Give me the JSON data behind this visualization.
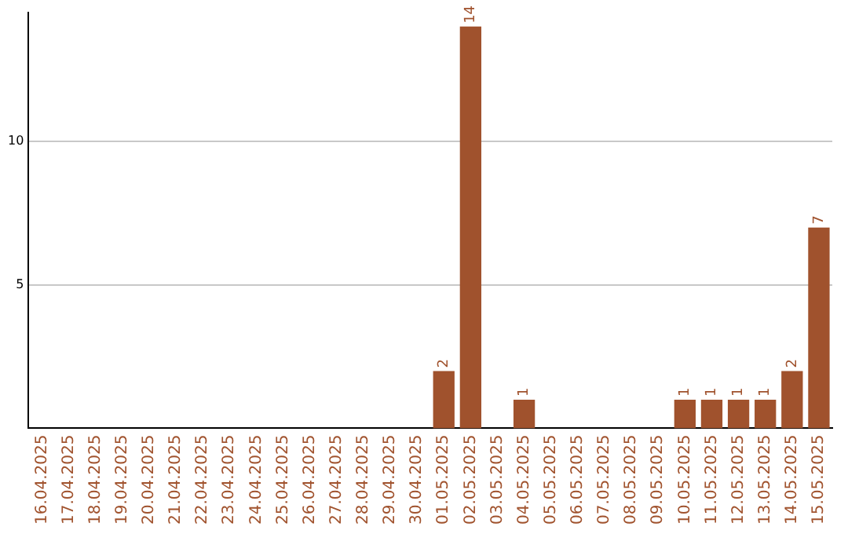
{
  "chart_data": {
    "type": "bar",
    "categories": [
      "16.04.2025",
      "17.04.2025",
      "18.04.2025",
      "19.04.2025",
      "20.04.2025",
      "21.04.2025",
      "22.04.2025",
      "23.04.2025",
      "24.04.2025",
      "25.04.2025",
      "26.04.2025",
      "27.04.2025",
      "28.04.2025",
      "29.04.2025",
      "30.04.2025",
      "01.05.2025",
      "02.05.2025",
      "03.05.2025",
      "04.05.2025",
      "05.05.2025",
      "06.05.2025",
      "07.05.2025",
      "08.05.2025",
      "09.05.2025",
      "10.05.2025",
      "11.05.2025",
      "12.05.2025",
      "13.05.2025",
      "14.05.2025",
      "15.05.2025"
    ],
    "values": [
      0,
      0,
      0,
      0,
      0,
      0,
      0,
      0,
      0,
      0,
      0,
      0,
      0,
      0,
      0,
      2,
      14,
      0,
      1,
      0,
      0,
      0,
      0,
      0,
      1,
      1,
      1,
      1,
      2,
      7
    ],
    "value_labels": [
      null,
      null,
      null,
      null,
      null,
      null,
      null,
      null,
      null,
      null,
      null,
      null,
      null,
      null,
      null,
      "2",
      "14",
      null,
      "1",
      null,
      null,
      null,
      null,
      null,
      "1",
      "1",
      "1",
      "1",
      "2",
      "7"
    ],
    "color": "#a0522d",
    "ylim": [
      0,
      14.5
    ],
    "yticks": [
      5,
      10
    ],
    "grid": "y",
    "legend": false
  }
}
